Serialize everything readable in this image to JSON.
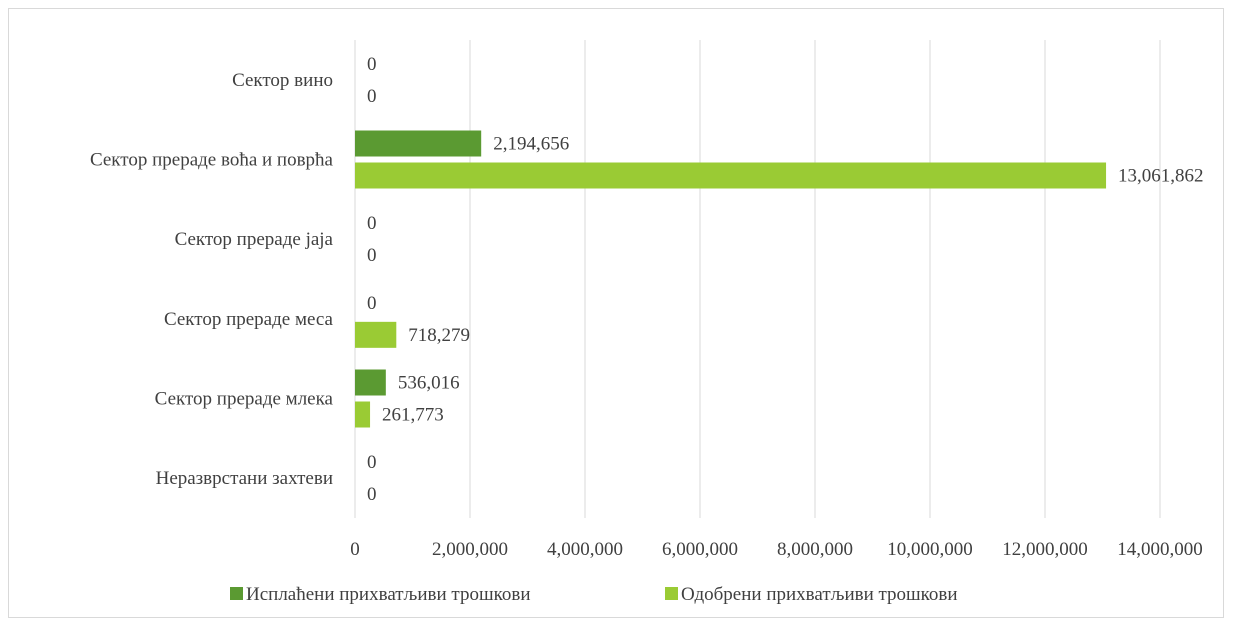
{
  "chart_data": {
    "type": "bar",
    "orientation": "horizontal",
    "title": "",
    "xlabel": "",
    "ylabel": "",
    "categories": [
      "Сектор вино",
      "Сектор прераде воћа и поврћа",
      "Сектор прераде јаја",
      "Сектор прераде меса",
      "Сектор прераде млека",
      "Неразврстани захтеви"
    ],
    "series": [
      {
        "name": "Исплаћени прихватљиви трошкови",
        "color": "#5b9a32",
        "values": [
          0,
          2194656,
          0,
          0,
          536016,
          0
        ],
        "labels": [
          "0",
          "2,194,656",
          "0",
          "0",
          "536,016",
          "0"
        ]
      },
      {
        "name": "Одобрени прихватљиви трошкови",
        "color": "#9acb34",
        "values": [
          0,
          13061862,
          0,
          718279,
          261773,
          0
        ],
        "labels": [
          "0",
          "13,061,862",
          "0",
          "718,279",
          "261,773",
          "0"
        ]
      }
    ],
    "xlim": [
      0,
      14000000
    ],
    "x_ticks": [
      0,
      2000000,
      4000000,
      6000000,
      8000000,
      10000000,
      12000000,
      14000000
    ],
    "x_tick_labels": [
      "0",
      "2,000,000",
      "4,000,000",
      "6,000,000",
      "8,000,000",
      "10,000,000",
      "12,000,000",
      "14,000,000"
    ],
    "grid": true,
    "legend_position": "bottom"
  }
}
